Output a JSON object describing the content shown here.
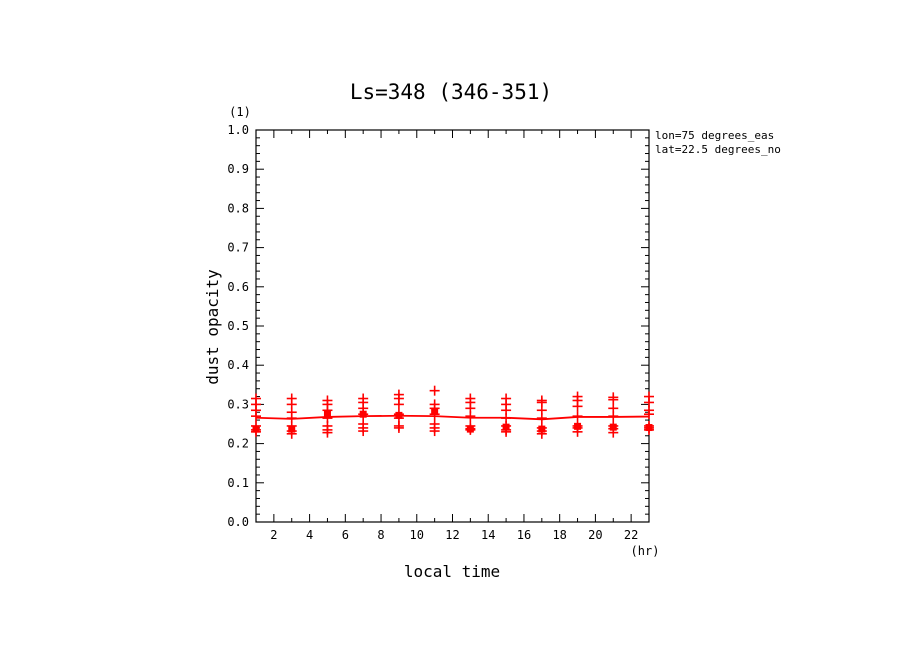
{
  "chart_data": {
    "type": "line",
    "title": "Ls=348 (346-351)",
    "xlabel": "local time",
    "ylabel": "dust opacity",
    "x_unit": "(hr)",
    "y_unit": "(1)",
    "xlim": [
      1,
      23
    ],
    "ylim": [
      0,
      1
    ],
    "x_ticks": [
      2,
      4,
      6,
      8,
      10,
      12,
      14,
      16,
      18,
      20,
      22
    ],
    "y_ticks": [
      "0.0",
      "0.1",
      "0.2",
      "0.3",
      "0.4",
      "0.5",
      "0.6",
      "0.7",
      "0.8",
      "0.9",
      "1.0"
    ],
    "annotations": [
      "lon=75 degrees_eas",
      "lat=22.5 degrees_no"
    ],
    "color": "#ff0000",
    "series": [
      {
        "style": "line",
        "x": [
          1,
          3,
          5,
          7,
          9,
          11,
          13,
          15,
          17,
          19,
          21,
          23
        ],
        "y": [
          0.266,
          0.263,
          0.268,
          0.27,
          0.271,
          0.27,
          0.266,
          0.266,
          0.262,
          0.268,
          0.268,
          0.269
        ]
      },
      {
        "style": "plus",
        "x": [
          1,
          3,
          5,
          7,
          9,
          11,
          13,
          15,
          17,
          19,
          21,
          23
        ],
        "samples": [
          [
            0.315,
            0.3,
            0.285,
            0.27,
            0.245,
            0.235,
            0.23
          ],
          [
            0.315,
            0.3,
            0.28,
            0.265,
            0.245,
            0.232,
            0.225
          ],
          [
            0.31,
            0.3,
            0.285,
            0.265,
            0.245,
            0.235,
            0.228
          ],
          [
            0.315,
            0.305,
            0.29,
            0.275,
            0.25,
            0.24,
            0.232
          ],
          [
            0.325,
            0.315,
            0.3,
            0.275,
            0.265,
            0.245,
            0.24
          ],
          [
            0.335,
            0.3,
            0.29,
            0.275,
            0.25,
            0.24,
            0.232
          ],
          [
            0.315,
            0.305,
            0.29,
            0.27,
            0.245,
            0.238,
            0.235
          ],
          [
            0.315,
            0.3,
            0.285,
            0.265,
            0.245,
            0.235,
            0.23
          ],
          [
            0.31,
            0.305,
            0.285,
            0.265,
            0.24,
            0.232,
            0.225
          ],
          [
            0.32,
            0.31,
            0.295,
            0.27,
            0.245,
            0.24,
            0.23
          ],
          [
            0.318,
            0.312,
            0.29,
            0.27,
            0.245,
            0.238,
            0.228
          ],
          [
            0.32,
            0.305,
            0.285,
            0.275,
            0.245,
            0.24,
            0.235
          ]
        ]
      },
      {
        "style": "square",
        "x": [
          1,
          3,
          5,
          7,
          9,
          11,
          13,
          15,
          17,
          19,
          21,
          23
        ],
        "y": [
          0.237,
          0.237,
          0.275,
          0.275,
          0.272,
          0.283,
          0.237,
          0.242,
          0.237,
          0.244,
          0.242,
          0.241
        ]
      }
    ]
  }
}
